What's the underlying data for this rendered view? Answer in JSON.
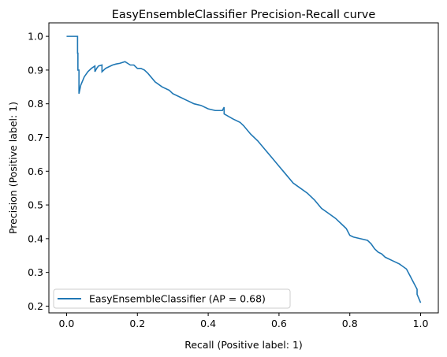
{
  "chart_data": {
    "type": "line",
    "title": "EasyEnsembleClassifier Precision-Recall curve",
    "xlabel": "Recall (Positive label: 1)",
    "ylabel": "Precision (Positive label: 1)",
    "xlim": [
      -0.05,
      1.05
    ],
    "ylim": [
      0.18,
      1.04
    ],
    "xticks": [
      0.0,
      0.2,
      0.4,
      0.6,
      0.8,
      1.0
    ],
    "xtick_labels": [
      "0.0",
      "0.2",
      "0.4",
      "0.6",
      "0.8",
      "1.0"
    ],
    "yticks": [
      0.2,
      0.3,
      0.4,
      0.5,
      0.6,
      0.7,
      0.8,
      0.9,
      1.0
    ],
    "ytick_labels": [
      "0.2",
      "0.3",
      "0.4",
      "0.5",
      "0.6",
      "0.7",
      "0.8",
      "0.9",
      "1.0"
    ],
    "grid": false,
    "legend_placement": "lower-left",
    "colors": {
      "series": "#1f77b4",
      "axes": "#000000",
      "background": "#ffffff"
    },
    "series": [
      {
        "name": "EasyEnsembleClassifier (AP = 0.68)",
        "drawstyle": "steps",
        "x": [
          0.0,
          0.031,
          0.031,
          0.032,
          0.032,
          0.035,
          0.035,
          0.04,
          0.05,
          0.06,
          0.07,
          0.08,
          0.08,
          0.085,
          0.09,
          0.1,
          0.1,
          0.11,
          0.12,
          0.13,
          0.14,
          0.15,
          0.165,
          0.18,
          0.19,
          0.2,
          0.21,
          0.22,
          0.23,
          0.25,
          0.27,
          0.29,
          0.3,
          0.32,
          0.34,
          0.36,
          0.38,
          0.4,
          0.42,
          0.44,
          0.445,
          0.445,
          0.47,
          0.49,
          0.5,
          0.52,
          0.54,
          0.56,
          0.58,
          0.6,
          0.62,
          0.64,
          0.66,
          0.68,
          0.7,
          0.72,
          0.74,
          0.76,
          0.78,
          0.79,
          0.8,
          0.81,
          0.83,
          0.85,
          0.86,
          0.87,
          0.88,
          0.89,
          0.9,
          0.92,
          0.94,
          0.96,
          0.97,
          0.98,
          0.99,
          0.99,
          1.0
        ],
        "y": [
          1.0,
          1.0,
          0.95,
          0.95,
          0.9,
          0.9,
          0.83,
          0.855,
          0.88,
          0.895,
          0.905,
          0.912,
          0.895,
          0.905,
          0.912,
          0.915,
          0.895,
          0.905,
          0.91,
          0.915,
          0.918,
          0.92,
          0.925,
          0.915,
          0.915,
          0.905,
          0.905,
          0.9,
          0.89,
          0.865,
          0.85,
          0.84,
          0.83,
          0.82,
          0.81,
          0.8,
          0.795,
          0.785,
          0.78,
          0.78,
          0.79,
          0.77,
          0.755,
          0.745,
          0.735,
          0.71,
          0.69,
          0.665,
          0.64,
          0.615,
          0.59,
          0.565,
          0.55,
          0.535,
          0.515,
          0.49,
          0.475,
          0.46,
          0.44,
          0.43,
          0.41,
          0.405,
          0.4,
          0.395,
          0.385,
          0.37,
          0.36,
          0.355,
          0.345,
          0.335,
          0.325,
          0.31,
          0.29,
          0.27,
          0.25,
          0.235,
          0.21
        ]
      }
    ]
  }
}
